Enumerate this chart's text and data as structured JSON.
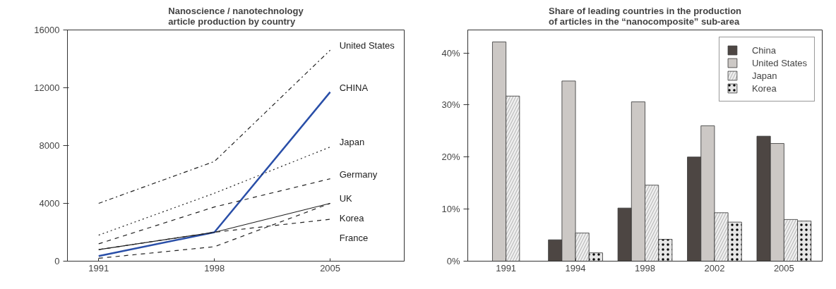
{
  "chart_data": [
    {
      "type": "line",
      "title": "Nanoscience / nanotechnology\narticle production by country",
      "categories": [
        "1991",
        "1998",
        "2005"
      ],
      "ylim": [
        0,
        16000
      ],
      "yticks": [
        0,
        4000,
        8000,
        12000,
        16000
      ],
      "legend": false,
      "grid": false,
      "series": [
        {
          "name": "United States",
          "color": "#222222",
          "line_style": "dashdot",
          "values": [
            4000,
            6900,
            14600
          ]
        },
        {
          "name": "CHINA",
          "color": "#2a4fa8",
          "line_style": "solid",
          "values": [
            350,
            2000,
            11700
          ]
        },
        {
          "name": "Japan",
          "color": "#222222",
          "line_style": "dotted",
          "values": [
            1800,
            4700,
            7900
          ]
        },
        {
          "name": "Germany",
          "color": "#222222",
          "line_style": "dashed",
          "values": [
            1200,
            3750,
            5700
          ]
        },
        {
          "name": "UK",
          "color": "#222222",
          "line_style": "solid",
          "values": [
            800,
            2000,
            4000
          ]
        },
        {
          "name": "France",
          "color": "#222222",
          "line_style": "dashed",
          "values": [
            800,
            2000,
            2900
          ]
        },
        {
          "name": "Korea",
          "color": "#222222",
          "line_style": "dashed",
          "values": [
            200,
            1000,
            4000
          ]
        }
      ]
    },
    {
      "type": "bar",
      "title": "Share of leading countries in the production\nof articles in the “nanocomposite” sub-area",
      "categories": [
        "1991",
        "1994",
        "1998",
        "2002",
        "2005"
      ],
      "ylim": [
        0,
        44.4
      ],
      "yticks": [
        {
          "value": 0,
          "label": "0%"
        },
        {
          "value": 10,
          "label": "10%"
        },
        {
          "value": 20,
          "label": "20%"
        },
        {
          "value": 30,
          "label": "30%"
        },
        {
          "value": 40,
          "label": "40%"
        }
      ],
      "legend": "top right",
      "grid": false,
      "series": [
        {
          "name": "China",
          "color": "#4d4643",
          "values": [
            null,
            4.1,
            10.2,
            20.0,
            24.0
          ]
        },
        {
          "name": "United States",
          "color": "#ccc8c5",
          "values": [
            42.1,
            34.6,
            30.6,
            26.0,
            22.6
          ]
        },
        {
          "name": "Japan",
          "color": "#f0f0f0",
          "values": [
            31.7,
            5.4,
            14.6,
            9.3,
            8.0
          ]
        },
        {
          "name": "Korea",
          "color": "#e6e6e6",
          "values": [
            null,
            1.6,
            4.2,
            7.5,
            7.7
          ]
        }
      ]
    }
  ]
}
